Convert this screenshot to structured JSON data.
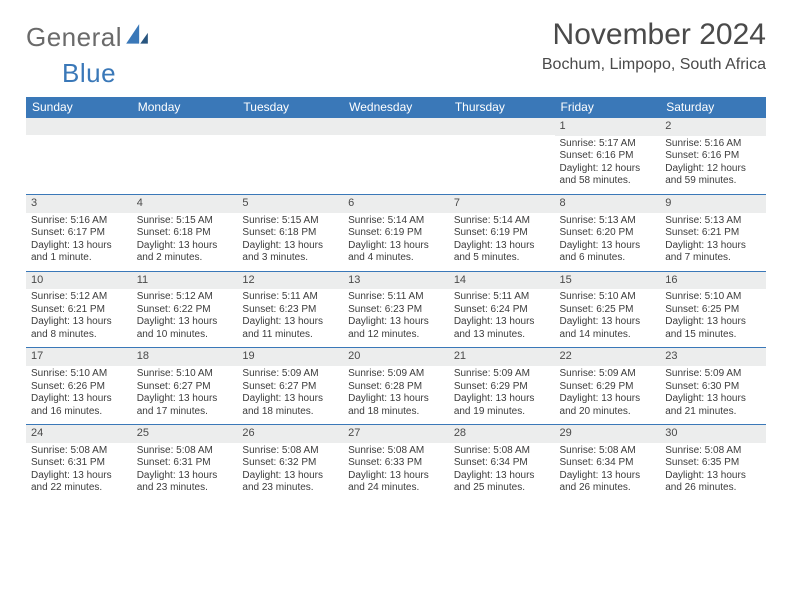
{
  "logo": {
    "word1": "General",
    "word2": "Blue"
  },
  "title": "November 2024",
  "location": "Bochum, Limpopo, South Africa",
  "colors": {
    "header_bg": "#3a78b8",
    "header_text": "#ffffff",
    "daynum_bg": "#eceded",
    "body_text": "#3c3c3c",
    "border": "#3a78b8",
    "page_bg": "#ffffff",
    "logo_gray": "#6a6a6a",
    "logo_blue": "#3a78b8"
  },
  "weekdays": [
    "Sunday",
    "Monday",
    "Tuesday",
    "Wednesday",
    "Thursday",
    "Friday",
    "Saturday"
  ],
  "weeks": [
    [
      null,
      null,
      null,
      null,
      null,
      {
        "n": "1",
        "sr": "5:17 AM",
        "ss": "6:16 PM",
        "dl": "12 hours and 58 minutes."
      },
      {
        "n": "2",
        "sr": "5:16 AM",
        "ss": "6:16 PM",
        "dl": "12 hours and 59 minutes."
      }
    ],
    [
      {
        "n": "3",
        "sr": "5:16 AM",
        "ss": "6:17 PM",
        "dl": "13 hours and 1 minute."
      },
      {
        "n": "4",
        "sr": "5:15 AM",
        "ss": "6:18 PM",
        "dl": "13 hours and 2 minutes."
      },
      {
        "n": "5",
        "sr": "5:15 AM",
        "ss": "6:18 PM",
        "dl": "13 hours and 3 minutes."
      },
      {
        "n": "6",
        "sr": "5:14 AM",
        "ss": "6:19 PM",
        "dl": "13 hours and 4 minutes."
      },
      {
        "n": "7",
        "sr": "5:14 AM",
        "ss": "6:19 PM",
        "dl": "13 hours and 5 minutes."
      },
      {
        "n": "8",
        "sr": "5:13 AM",
        "ss": "6:20 PM",
        "dl": "13 hours and 6 minutes."
      },
      {
        "n": "9",
        "sr": "5:13 AM",
        "ss": "6:21 PM",
        "dl": "13 hours and 7 minutes."
      }
    ],
    [
      {
        "n": "10",
        "sr": "5:12 AM",
        "ss": "6:21 PM",
        "dl": "13 hours and 8 minutes."
      },
      {
        "n": "11",
        "sr": "5:12 AM",
        "ss": "6:22 PM",
        "dl": "13 hours and 10 minutes."
      },
      {
        "n": "12",
        "sr": "5:11 AM",
        "ss": "6:23 PM",
        "dl": "13 hours and 11 minutes."
      },
      {
        "n": "13",
        "sr": "5:11 AM",
        "ss": "6:23 PM",
        "dl": "13 hours and 12 minutes."
      },
      {
        "n": "14",
        "sr": "5:11 AM",
        "ss": "6:24 PM",
        "dl": "13 hours and 13 minutes."
      },
      {
        "n": "15",
        "sr": "5:10 AM",
        "ss": "6:25 PM",
        "dl": "13 hours and 14 minutes."
      },
      {
        "n": "16",
        "sr": "5:10 AM",
        "ss": "6:25 PM",
        "dl": "13 hours and 15 minutes."
      }
    ],
    [
      {
        "n": "17",
        "sr": "5:10 AM",
        "ss": "6:26 PM",
        "dl": "13 hours and 16 minutes."
      },
      {
        "n": "18",
        "sr": "5:10 AM",
        "ss": "6:27 PM",
        "dl": "13 hours and 17 minutes."
      },
      {
        "n": "19",
        "sr": "5:09 AM",
        "ss": "6:27 PM",
        "dl": "13 hours and 18 minutes."
      },
      {
        "n": "20",
        "sr": "5:09 AM",
        "ss": "6:28 PM",
        "dl": "13 hours and 18 minutes."
      },
      {
        "n": "21",
        "sr": "5:09 AM",
        "ss": "6:29 PM",
        "dl": "13 hours and 19 minutes."
      },
      {
        "n": "22",
        "sr": "5:09 AM",
        "ss": "6:29 PM",
        "dl": "13 hours and 20 minutes."
      },
      {
        "n": "23",
        "sr": "5:09 AM",
        "ss": "6:30 PM",
        "dl": "13 hours and 21 minutes."
      }
    ],
    [
      {
        "n": "24",
        "sr": "5:08 AM",
        "ss": "6:31 PM",
        "dl": "13 hours and 22 minutes."
      },
      {
        "n": "25",
        "sr": "5:08 AM",
        "ss": "6:31 PM",
        "dl": "13 hours and 23 minutes."
      },
      {
        "n": "26",
        "sr": "5:08 AM",
        "ss": "6:32 PM",
        "dl": "13 hours and 23 minutes."
      },
      {
        "n": "27",
        "sr": "5:08 AM",
        "ss": "6:33 PM",
        "dl": "13 hours and 24 minutes."
      },
      {
        "n": "28",
        "sr": "5:08 AM",
        "ss": "6:34 PM",
        "dl": "13 hours and 25 minutes."
      },
      {
        "n": "29",
        "sr": "5:08 AM",
        "ss": "6:34 PM",
        "dl": "13 hours and 26 minutes."
      },
      {
        "n": "30",
        "sr": "5:08 AM",
        "ss": "6:35 PM",
        "dl": "13 hours and 26 minutes."
      }
    ]
  ],
  "labels": {
    "sunrise": "Sunrise:",
    "sunset": "Sunset:",
    "daylight": "Daylight:"
  }
}
